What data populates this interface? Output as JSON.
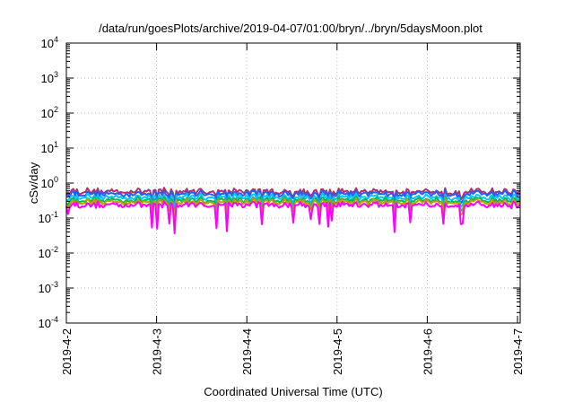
{
  "chart_data": {
    "type": "line",
    "title": "/data/run/goesPlots/archive/2019-04-07/01:00/bryn/../bryn/5daysMoon.plot",
    "xlabel": "Coordinated Universal Time (UTC)",
    "ylabel": "cSv/day",
    "yscale": "log",
    "ylim": [
      0.0001,
      10000
    ],
    "y_ticks": [
      {
        "value": 0.0001,
        "base": "10",
        "exp": "-4"
      },
      {
        "value": 0.001,
        "base": "10",
        "exp": "-3"
      },
      {
        "value": 0.01,
        "base": "10",
        "exp": "-2"
      },
      {
        "value": 0.1,
        "base": "10",
        "exp": "-1"
      },
      {
        "value": 1,
        "base": "10",
        "exp": "0"
      },
      {
        "value": 10,
        "base": "10",
        "exp": "1"
      },
      {
        "value": 100,
        "base": "10",
        "exp": "2"
      },
      {
        "value": 1000,
        "base": "10",
        "exp": "3"
      },
      {
        "value": 10000,
        "base": "10",
        "exp": "4"
      }
    ],
    "xlim_days": [
      0,
      5.03
    ],
    "x_ticks": [
      {
        "day": 0,
        "label": "2019-4-2"
      },
      {
        "day": 1,
        "label": "2019-4-3"
      },
      {
        "day": 2,
        "label": "2019-4-4"
      },
      {
        "day": 3,
        "label": "2019-4-5"
      },
      {
        "day": 4,
        "label": "2019-4-6"
      },
      {
        "day": 5,
        "label": "2019-4-7"
      }
    ],
    "grid": true,
    "legend": "none",
    "series": [
      {
        "color": "#b0306a",
        "level": 0.58
      },
      {
        "color": "#1f5fff",
        "level": 0.5
      },
      {
        "color": "#00c8ff",
        "level": 0.4
      },
      {
        "color": "#00b85a",
        "level": 0.33
      },
      {
        "color": "#bba000",
        "level": 0.29
      },
      {
        "color": "#ff00ff",
        "level": 0.24
      }
    ]
  }
}
